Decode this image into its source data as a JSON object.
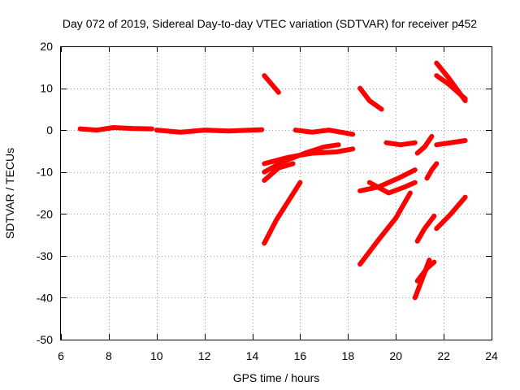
{
  "chart_data": {
    "type": "scatter",
    "title": "Day 072 of 2019, Sidereal Day-to-day VTEC variation (SDTVAR) for receiver p452",
    "xlabel": "GPS time / hours",
    "ylabel": "SDTVAR / TECUs",
    "xlim": [
      6,
      24
    ],
    "ylim": [
      -50,
      20
    ],
    "xticks": [
      6,
      8,
      10,
      12,
      14,
      16,
      18,
      20,
      22,
      24
    ],
    "yticks": [
      -50,
      -40,
      -30,
      -20,
      -10,
      0,
      10,
      20
    ],
    "grid": true,
    "marker_color": "#ff0000",
    "series": [
      {
        "x": [
          6.8,
          7.5,
          8.2,
          9.0,
          9.8
        ],
        "y": [
          0.3,
          0.0,
          0.6,
          0.4,
          0.3
        ]
      },
      {
        "x": [
          10.0,
          11.0,
          12.0,
          13.0,
          14.4
        ],
        "y": [
          0.0,
          -0.5,
          0.0,
          -0.2,
          0.1
        ]
      },
      {
        "x": [
          14.5,
          15.1
        ],
        "y": [
          13.0,
          9.0
        ]
      },
      {
        "x": [
          14.5,
          15.5,
          16.5,
          17.5,
          18.2
        ],
        "y": [
          -8.0,
          -6.5,
          -5.5,
          -5.2,
          -4.5
        ]
      },
      {
        "x": [
          14.5,
          15.3,
          16.2,
          17.0,
          17.6
        ],
        "y": [
          -10.0,
          -7.5,
          -5.5,
          -4.0,
          -3.5
        ]
      },
      {
        "x": [
          14.5,
          15.1,
          15.7
        ],
        "y": [
          -12.0,
          -9.0,
          -8.0
        ]
      },
      {
        "x": [
          14.5,
          15.0,
          15.5,
          16.0
        ],
        "y": [
          -27.0,
          -21.5,
          -17.0,
          -12.5
        ]
      },
      {
        "x": [
          15.8,
          16.5,
          17.2,
          18.2
        ],
        "y": [
          0.0,
          -0.5,
          0.0,
          -1.0
        ]
      },
      {
        "x": [
          18.5,
          18.9,
          19.4
        ],
        "y": [
          10.0,
          7.0,
          5.0
        ]
      },
      {
        "x": [
          18.5,
          19.3,
          20.1,
          20.8
        ],
        "y": [
          -14.5,
          -13.5,
          -11.5,
          -9.5
        ]
      },
      {
        "x": [
          18.9,
          19.7,
          20.4,
          20.8
        ],
        "y": [
          -12.5,
          -15.0,
          -13.5,
          -12.5
        ]
      },
      {
        "x": [
          18.5,
          19.3,
          20.0,
          20.6
        ],
        "y": [
          -32.0,
          -26.0,
          -21.0,
          -15.0
        ]
      },
      {
        "x": [
          19.6,
          20.2,
          20.8
        ],
        "y": [
          -3.0,
          -3.5,
          -3.0
        ]
      },
      {
        "x": [
          20.9,
          21.2,
          21.5
        ],
        "y": [
          -5.5,
          -4.0,
          -1.5
        ]
      },
      {
        "x": [
          20.9,
          21.2,
          21.6
        ],
        "y": [
          -26.5,
          -23.5,
          -20.5
        ]
      },
      {
        "x": [
          21.3,
          21.5,
          21.7
        ],
        "y": [
          -11.5,
          -9.5,
          -8.0
        ]
      },
      {
        "x": [
          21.7,
          22.3,
          22.9
        ],
        "y": [
          -3.5,
          -3.0,
          -2.5
        ]
      },
      {
        "x": [
          21.7,
          22.2,
          22.9
        ],
        "y": [
          16.0,
          12.5,
          7.0
        ]
      },
      {
        "x": [
          21.7,
          22.2,
          22.9
        ],
        "y": [
          13.0,
          11.0,
          7.5
        ]
      },
      {
        "x": [
          21.7,
          22.3,
          22.9
        ],
        "y": [
          -23.5,
          -20.0,
          -16.0
        ]
      },
      {
        "x": [
          20.8,
          21.0,
          21.2,
          21.4
        ],
        "y": [
          -40.0,
          -37.0,
          -34.0,
          -31.0
        ]
      },
      {
        "x": [
          20.9,
          21.3,
          21.6
        ],
        "y": [
          -36.0,
          -33.0,
          -31.5
        ]
      }
    ]
  }
}
